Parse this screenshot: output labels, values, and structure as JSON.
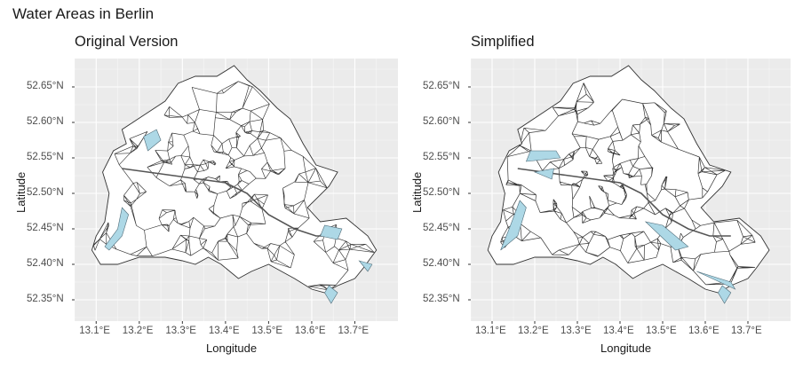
{
  "title": "Water Areas in Berlin",
  "panels": [
    {
      "title": "Original Version"
    },
    {
      "title": "Simplified"
    }
  ],
  "axes": {
    "xlabel": "Longitude",
    "ylabel": "Latitude",
    "x_ticks": [
      "13.1°E",
      "13.2°E",
      "13.3°E",
      "13.4°E",
      "13.5°E",
      "13.6°E",
      "13.7°E"
    ],
    "y_ticks": [
      "52.65°N",
      "52.60°N",
      "52.55°N",
      "52.50°N",
      "52.45°N",
      "52.40°N",
      "52.35°N"
    ]
  },
  "colors": {
    "panel_bg": "#ebebeb",
    "grid": "#ffffff",
    "district_fill": "#ffffff",
    "district_stroke": "#333333",
    "water_fill": "#add8e6"
  },
  "chart_data": [
    {
      "type": "map",
      "title": "Original Version",
      "xlabel": "Longitude",
      "ylabel": "Latitude",
      "xlim": [
        13.05,
        13.8
      ],
      "ylim": [
        52.32,
        52.69
      ],
      "x_ticks": [
        13.1,
        13.2,
        13.3,
        13.4,
        13.5,
        13.6,
        13.7
      ],
      "y_ticks": [
        52.65,
        52.6,
        52.55,
        52.5,
        52.45,
        52.4,
        52.35
      ],
      "grid": true
    },
    {
      "type": "map",
      "title": "Simplified",
      "xlabel": "Longitude",
      "ylabel": "Latitude",
      "xlim": [
        13.05,
        13.8
      ],
      "ylim": [
        52.32,
        52.69
      ],
      "x_ticks": [
        13.1,
        13.2,
        13.3,
        13.4,
        13.5,
        13.6,
        13.7
      ],
      "y_ticks": [
        52.65,
        52.6,
        52.55,
        52.5,
        52.45,
        52.4,
        52.35
      ],
      "grid": true
    }
  ]
}
